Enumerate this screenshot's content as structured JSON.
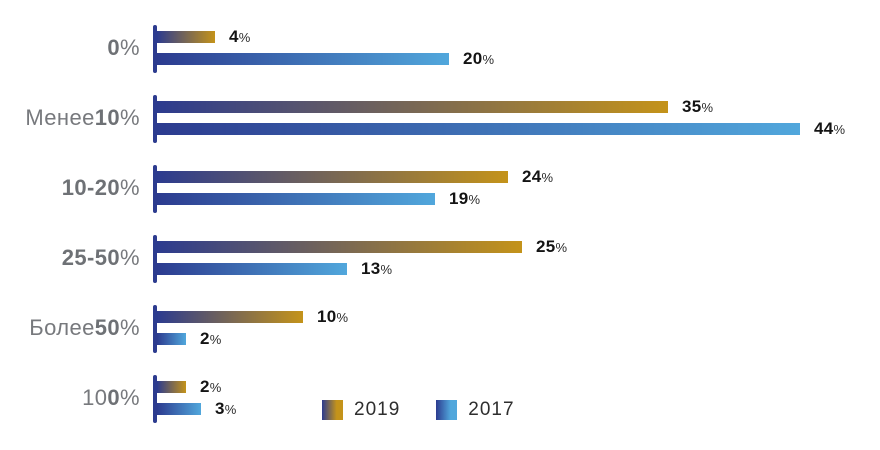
{
  "chart_data": {
    "type": "bar",
    "orientation": "horizontal",
    "title": "",
    "xlabel": "",
    "ylabel": "",
    "grid": false,
    "categories": [
      "0%",
      "Менее 10%",
      "10-20%",
      "25-50%",
      "Более 50%",
      "100%"
    ],
    "category_label_parts": [
      [
        {
          "text": "0",
          "bold": true
        },
        {
          "text": "%",
          "bold": false
        }
      ],
      [
        {
          "text": "Менее ",
          "bold": false
        },
        {
          "text": "10",
          "bold": true
        },
        {
          "text": "%",
          "bold": false
        }
      ],
      [
        {
          "text": "10-20",
          "bold": true
        },
        {
          "text": "%",
          "bold": false
        }
      ],
      [
        {
          "text": "25-50",
          "bold": true
        },
        {
          "text": "%",
          "bold": false
        }
      ],
      [
        {
          "text": "Более ",
          "bold": false
        },
        {
          "text": "50",
          "bold": true
        },
        {
          "text": "%",
          "bold": false
        }
      ],
      [
        {
          "text": "10",
          "bold": false
        },
        {
          "text": "0",
          "bold": true
        },
        {
          "text": "%",
          "bold": false
        }
      ]
    ],
    "series": [
      {
        "name": "2019",
        "values": [
          4,
          35,
          24,
          25,
          10,
          2
        ],
        "gradient_start": "#2c3b8f",
        "gradient_end": "#c4931a"
      },
      {
        "name": "2017",
        "values": [
          20,
          44,
          19,
          13,
          2,
          3
        ],
        "gradient_start": "#2c3b8f",
        "gradient_end": "#51a7dc"
      }
    ],
    "value_suffix": "%",
    "xlim": [
      0,
      44
    ],
    "legend_position": "bottom-center",
    "legend_labels": [
      "2019",
      "2017"
    ]
  },
  "colors": {
    "axis_tick": "#2c3b8f",
    "category_label": "#77797d",
    "value_label": "#141414",
    "legend_label": "#2e2e2e",
    "background": "#ffffff"
  }
}
